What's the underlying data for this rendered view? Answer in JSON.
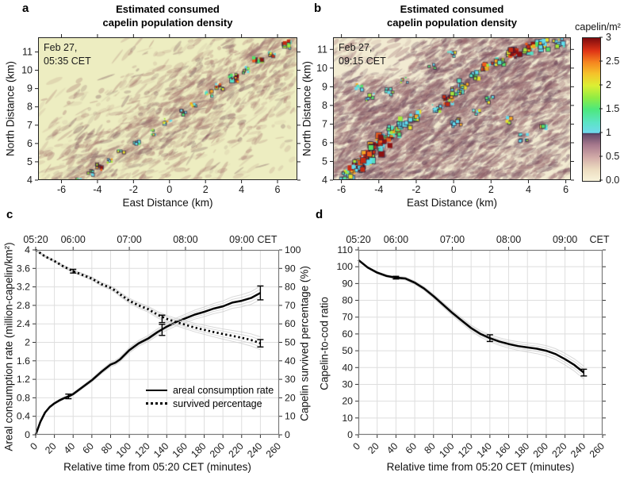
{
  "chart_data": [
    {
      "id": "a",
      "type": "heatmap",
      "panel_label": "a",
      "title_lines": [
        "Estimated consumed",
        "capelin population density"
      ],
      "timestamp_lines": [
        "Feb 27,",
        "05:35 CET"
      ],
      "xlabel": "East Distance (km)",
      "ylabel": "North Distance (km)",
      "xlim": [
        -7.3,
        7.1
      ],
      "ylim": [
        4,
        11.8
      ],
      "xticks": [
        -6,
        -4,
        -2,
        0,
        2,
        4,
        6
      ],
      "yticks": [
        4,
        5,
        6,
        7,
        8,
        9,
        10,
        11
      ],
      "value_scale": {
        "label": "capelin/m²",
        "range": [
          0,
          3
        ]
      },
      "description": "Pale yellow-green acoustic map with faint mauve speckle; a narrow diagonal line of small high-density capelin patches (cyan/green/yellow/red) runs from about (-5,4) to (6.5,11.7).",
      "render": {
        "seed": 7,
        "base": "#ededc1",
        "streaks": 3200,
        "band": [
          0.18,
          0.97,
          0.98,
          0.02
        ],
        "bandwidth": 0.2,
        "bg_accept": 0.1,
        "band_accept": 0.75,
        "mauve": "168,120,114",
        "dark": "122,82,92",
        "dark_frac": 0.2,
        "fade_tl": [
          0.3,
          0.35,
          0.2
        ],
        "clusters": [
          [
            0.16,
            0.99,
            5,
            4,
            3,
            0
          ],
          [
            0.2,
            0.95,
            6,
            4,
            3,
            0
          ],
          [
            0.23,
            0.91,
            7,
            5,
            4,
            1
          ],
          [
            0.28,
            0.86,
            5,
            4,
            3,
            0
          ],
          [
            0.32,
            0.8,
            5,
            4,
            3,
            0
          ],
          [
            0.38,
            0.73,
            6,
            4,
            3,
            0
          ],
          [
            0.44,
            0.665,
            6,
            4,
            3,
            0
          ],
          [
            0.5,
            0.59,
            7,
            5,
            4,
            0
          ],
          [
            0.56,
            0.525,
            6,
            4,
            3,
            0
          ],
          [
            0.6,
            0.47,
            6,
            4,
            3,
            0
          ],
          [
            0.66,
            0.4,
            7,
            5,
            4,
            0
          ],
          [
            0.7,
            0.345,
            8,
            5,
            4,
            1
          ],
          [
            0.755,
            0.285,
            12,
            6,
            6,
            1
          ],
          [
            0.8,
            0.23,
            8,
            5,
            4,
            0
          ],
          [
            0.85,
            0.17,
            10,
            6,
            5,
            1
          ],
          [
            0.9,
            0.115,
            8,
            5,
            4,
            1
          ],
          [
            0.955,
            0.05,
            9,
            6,
            5,
            1
          ]
        ]
      }
    },
    {
      "id": "b",
      "type": "heatmap",
      "panel_label": "b",
      "title_lines": [
        "Estimated consumed",
        "capelin population density"
      ],
      "timestamp_lines": [
        "Feb 27,",
        "09:15 CET"
      ],
      "xlabel": "East Distance (km)",
      "ylabel": "North Distance (km)",
      "xlim": [
        -6.45,
        6.27
      ],
      "ylim": [
        4,
        11.65
      ],
      "xticks": [
        -6,
        -4,
        -2,
        0,
        2,
        4,
        6
      ],
      "yticks": [
        4,
        5,
        6,
        7,
        8,
        9,
        10,
        11
      ],
      "colorbar": {
        "label": "capelin/m²",
        "range": [
          0,
          3
        ],
        "tick_labels": [
          "3",
          "2.5",
          "2",
          "1.5",
          "1",
          "0.5",
          "0.0"
        ],
        "gradient": [
          [
            0,
            "#f8f3da"
          ],
          [
            0.08,
            "#ecdcc0"
          ],
          [
            0.17,
            "#d0a8a6"
          ],
          [
            0.25,
            "#a87a8e"
          ],
          [
            0.32,
            "#6a4e6c"
          ],
          [
            0.333,
            "#473c5c"
          ],
          [
            0.336,
            "#70d9ee"
          ],
          [
            0.41,
            "#5be4c4"
          ],
          [
            0.5,
            "#4de87d"
          ],
          [
            0.58,
            "#8fec44"
          ],
          [
            0.667,
            "#dcef33"
          ],
          [
            0.75,
            "#f5c32a"
          ],
          [
            0.833,
            "#f5831f"
          ],
          [
            0.91,
            "#df3416"
          ],
          [
            1,
            "#7e0b0e"
          ]
        ]
      },
      "description": "Same map 3h40m later: heavy mauve-brown backscatter texture over cream background with broad diagonal band of dense capelin patches (cyan/green/yellow/orange/red) from lower-left to upper-right.",
      "render": {
        "seed": 13,
        "base": "#f2ebd2",
        "streaks": 5600,
        "band": [
          0.02,
          0.98,
          0.98,
          0.02
        ],
        "bandwidth": 0.34,
        "bg_accept": 0.42,
        "band_accept": 0.45,
        "mauve": "152,104,110",
        "dark": "100,62,84",
        "dark_frac": 0.35,
        "fade_tl": [
          0.33,
          0.3,
          0.25
        ],
        "clusters": [
          [
            0.06,
            0.96,
            20,
            8,
            6,
            0
          ],
          [
            0.1,
            0.9,
            26,
            9,
            7,
            1
          ],
          [
            0.14,
            0.84,
            26,
            9,
            7,
            1
          ],
          [
            0.18,
            0.78,
            28,
            9,
            7,
            1
          ],
          [
            0.22,
            0.72,
            26,
            9,
            7,
            1
          ],
          [
            0.26,
            0.66,
            22,
            8,
            6,
            0
          ],
          [
            0.3,
            0.6,
            18,
            8,
            6,
            0
          ],
          [
            0.34,
            0.55,
            14,
            7,
            5,
            0
          ],
          [
            0.44,
            0.5,
            12,
            7,
            5,
            0
          ],
          [
            0.48,
            0.44,
            14,
            7,
            5,
            1
          ],
          [
            0.52,
            0.38,
            12,
            7,
            5,
            0
          ],
          [
            0.55,
            0.33,
            10,
            6,
            5,
            0
          ],
          [
            0.6,
            0.26,
            14,
            7,
            5,
            0
          ],
          [
            0.65,
            0.21,
            14,
            7,
            5,
            1
          ],
          [
            0.7,
            0.17,
            12,
            7,
            5,
            0
          ],
          [
            0.76,
            0.12,
            16,
            8,
            6,
            1
          ],
          [
            0.82,
            0.08,
            18,
            8,
            6,
            1
          ],
          [
            0.88,
            0.05,
            16,
            8,
            6,
            0
          ],
          [
            0.95,
            0.04,
            12,
            7,
            5,
            0
          ],
          [
            0.16,
            0.42,
            8,
            6,
            4,
            0
          ],
          [
            0.11,
            0.35,
            6,
            5,
            4,
            0
          ],
          [
            0.24,
            0.38,
            6,
            5,
            4,
            0
          ],
          [
            0.3,
            0.3,
            5,
            5,
            3,
            0
          ],
          [
            0.52,
            0.6,
            8,
            6,
            4,
            0
          ],
          [
            0.6,
            0.52,
            6,
            5,
            4,
            0
          ],
          [
            0.66,
            0.44,
            6,
            5,
            4,
            0
          ],
          [
            0.8,
            0.7,
            8,
            6,
            4,
            0
          ],
          [
            0.88,
            0.62,
            6,
            5,
            4,
            0
          ],
          [
            0.74,
            0.58,
            5,
            5,
            4,
            0
          ],
          [
            0.5,
            0.12,
            5,
            5,
            3,
            0
          ],
          [
            0.42,
            0.2,
            5,
            5,
            3,
            0
          ]
        ]
      }
    },
    {
      "id": "c",
      "type": "line",
      "panel_label": "c",
      "xlabel": "Relative time from 05:20 CET (minutes)",
      "xlim": [
        0,
        260
      ],
      "xticks": [
        0,
        20,
        40,
        60,
        80,
        100,
        120,
        140,
        160,
        180,
        200,
        220,
        240,
        260
      ],
      "top_axis": {
        "unit": "CET",
        "hours": [
          {
            "t": 0,
            "label": "05:20"
          },
          {
            "t": 40,
            "label": "06:00"
          },
          {
            "t": 100,
            "label": "07:00"
          },
          {
            "t": 160,
            "label": "08:00"
          },
          {
            "t": 220,
            "label": "09:00"
          }
        ]
      },
      "left_axis": {
        "label": "Areal consumption rate (million-capelin/km²)",
        "lim": [
          0,
          4
        ],
        "ticks": [
          0,
          0.4,
          0.8,
          1.2,
          1.6,
          2,
          2.4,
          2.8,
          3.2,
          3.6,
          4
        ]
      },
      "right_axis": {
        "label": "Capelin survived percentage (%)",
        "lim": [
          0,
          100
        ],
        "ticks": [
          0,
          10,
          20,
          30,
          40,
          50,
          60,
          70,
          80,
          90,
          100
        ]
      },
      "legend": [
        "areal consumption rate",
        "survived percentage"
      ],
      "uncertainty_band": true,
      "series": [
        {
          "name": "areal consumption rate",
          "axis": "left",
          "style": "solid",
          "t": [
            0,
            5,
            10,
            15,
            20,
            25,
            30,
            35,
            40,
            50,
            60,
            70,
            80,
            85,
            90,
            100,
            110,
            120,
            130,
            140,
            150,
            160,
            170,
            180,
            190,
            200,
            210,
            220,
            230,
            240
          ],
          "v": [
            0,
            0.28,
            0.48,
            0.6,
            0.68,
            0.74,
            0.79,
            0.83,
            0.88,
            1.03,
            1.18,
            1.36,
            1.52,
            1.56,
            1.63,
            1.83,
            1.98,
            2.08,
            2.22,
            2.34,
            2.44,
            2.52,
            2.6,
            2.66,
            2.73,
            2.78,
            2.86,
            2.9,
            2.96,
            3.07
          ],
          "error_bars": [
            {
              "t": 35,
              "v": 0.83,
              "e": 0.05
            },
            {
              "t": 135,
              "v": 2.27,
              "e": 0.12
            },
            {
              "t": 240,
              "v": 3.07,
              "e": 0.15
            }
          ],
          "band_max": 0.16
        },
        {
          "name": "survived percentage",
          "axis": "right",
          "style": "dotted",
          "t": [
            0,
            10,
            20,
            30,
            40,
            50,
            60,
            70,
            80,
            85,
            90,
            100,
            110,
            120,
            130,
            140,
            150,
            160,
            170,
            180,
            190,
            200,
            210,
            220,
            230,
            240
          ],
          "v": [
            100,
            96.5,
            94,
            91,
            88.5,
            86.5,
            84.5,
            81.5,
            79.5,
            78,
            76,
            72.5,
            70,
            68,
            65,
            62.7,
            61,
            59.5,
            58,
            56.8,
            55.6,
            54.5,
            53.5,
            52.5,
            51.3,
            49.5
          ],
          "error_bars": [
            {
              "t": 40,
              "v": 88.5,
              "e": 1
            },
            {
              "t": 135,
              "v": 62.7,
              "e": 2
            },
            {
              "t": 240,
              "v": 49.5,
              "e": 2
            }
          ],
          "band_max": 3.8
        }
      ]
    },
    {
      "id": "d",
      "type": "line",
      "panel_label": "d",
      "xlabel": "Relative time from 05:20 CET (minutes)",
      "xlim": [
        0,
        260
      ],
      "xticks": [
        0,
        20,
        40,
        60,
        80,
        100,
        120,
        140,
        160,
        180,
        200,
        220,
        240,
        260
      ],
      "top_axis": {
        "unit": "CET",
        "hours": [
          {
            "t": 0,
            "label": "05:20"
          },
          {
            "t": 40,
            "label": "06:00"
          },
          {
            "t": 100,
            "label": "07:00"
          },
          {
            "t": 160,
            "label": "08:00"
          },
          {
            "t": 220,
            "label": "09:00"
          }
        ]
      },
      "left_axis": {
        "label": "Capelin-to-cod ratio",
        "lim": [
          0,
          110
        ],
        "ticks": [
          0,
          10,
          20,
          30,
          40,
          50,
          60,
          70,
          80,
          90,
          100,
          110
        ]
      },
      "uncertainty_band": true,
      "series": [
        {
          "name": "capelin-to-cod ratio",
          "axis": "left",
          "style": "solid",
          "t": [
            0,
            10,
            20,
            30,
            40,
            50,
            60,
            70,
            80,
            90,
            100,
            110,
            120,
            130,
            140,
            150,
            160,
            170,
            180,
            190,
            200,
            210,
            220,
            230,
            240
          ],
          "v": [
            104,
            99.5,
            96.5,
            94.5,
            93.5,
            93,
            90.5,
            87,
            82.5,
            77.5,
            72.5,
            68,
            63.5,
            60,
            57.5,
            55.5,
            54,
            52.8,
            52,
            51.2,
            50,
            48,
            45,
            41.5,
            37
          ],
          "error_bars": [
            {
              "t": 40,
              "v": 93.5,
              "e": 0.8
            },
            {
              "t": 140,
              "v": 57.5,
              "e": 2
            },
            {
              "t": 240,
              "v": 37,
              "e": 2
            }
          ],
          "band_max": 4.2
        }
      ]
    }
  ]
}
